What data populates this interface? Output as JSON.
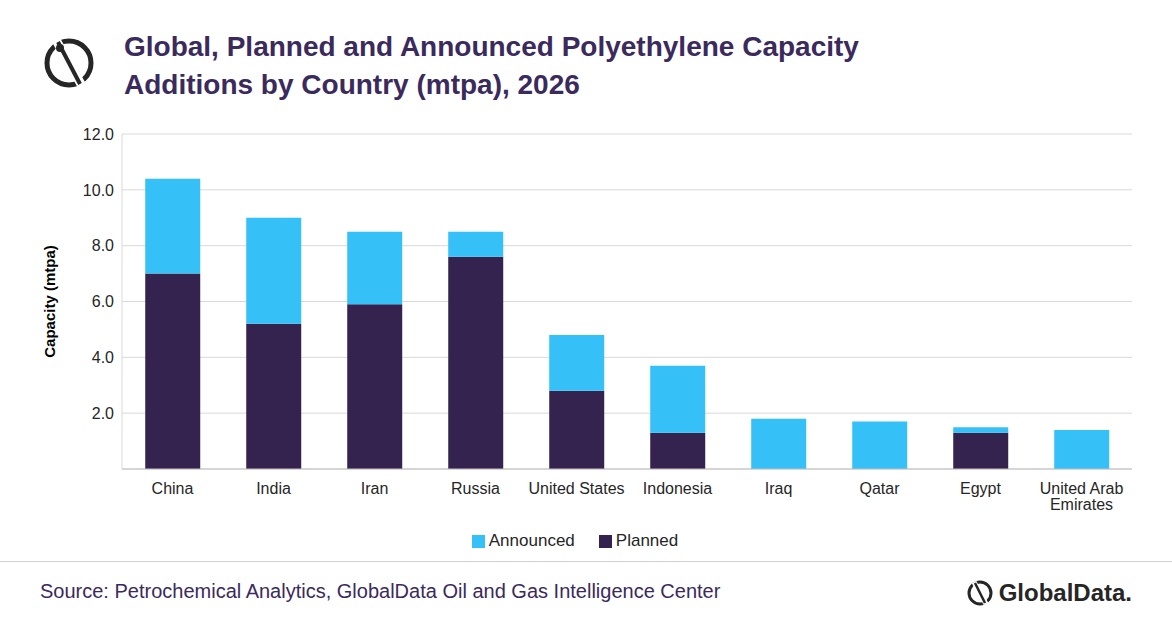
{
  "chart_data": {
    "type": "bar",
    "title": "Global, Planned and Announced Polyethylene Capacity Additions by Country (mtpa), 2026",
    "y_label": "Capacity (mtpa)",
    "source": "Source: Petrochemical Analytics, GlobalData Oil and Gas Intelligence Center",
    "logo": "GlobalData.",
    "categories": [
      "China",
      "India",
      "Iran",
      "Russia",
      "United States",
      "Indonesia",
      "Iraq",
      "Qatar",
      "Egypt",
      "United Arab Emirates"
    ],
    "series": [
      {
        "name": "Planned",
        "color": "#35234f",
        "values": [
          7.0,
          5.2,
          5.9,
          7.6,
          2.8,
          1.3,
          0,
          0,
          1.3,
          0
        ]
      },
      {
        "name": "Announced",
        "color": "#36c0f8",
        "values": [
          3.4,
          3.8,
          2.6,
          0.9,
          2.0,
          2.4,
          1.8,
          1.7,
          0.2,
          1.4
        ]
      }
    ],
    "stacked": true,
    "ylim": [
      0,
      12
    ],
    "yticks": [
      {
        "value": 2,
        "label": "2.0"
      },
      {
        "value": 4,
        "label": "4.0"
      },
      {
        "value": 6,
        "label": "6.0"
      },
      {
        "value": 8,
        "label": "8.0"
      },
      {
        "value": 10,
        "label": "10.0"
      },
      {
        "value": 12,
        "label": "12.0"
      }
    ],
    "grid": true,
    "legend": "bottom"
  }
}
